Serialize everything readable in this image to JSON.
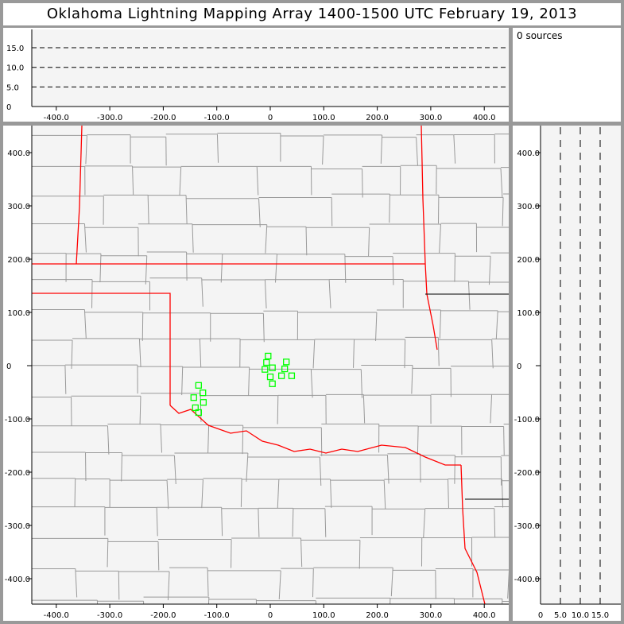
{
  "title": "Oklahoma Lightning Mapping Array   1400-1500 UTC  February 19, 2013",
  "sources_label": "0 sources",
  "colors": {
    "background": "#999999",
    "plot": "#f4f4f4",
    "county": "#999999",
    "state": "#ff0000",
    "station": "#00ff00"
  },
  "chart_data": [
    {
      "type": "line",
      "panel": "altitude-vs-east-west",
      "xlim": [
        -450,
        450
      ],
      "ylim": [
        0,
        19
      ],
      "x_ticks": [
        "-400.0",
        "-300.0",
        "-200.0",
        "-100.0",
        "0",
        "100.0",
        "200.0",
        "300.0",
        "400.0"
      ],
      "y_ticks": [
        "0",
        "5.0",
        "10.0",
        "15.0"
      ],
      "dashed_lines_at": [
        5,
        10,
        15
      ],
      "series": []
    },
    {
      "type": "scatter",
      "panel": "plan-view-map",
      "xlim": [
        -450,
        450
      ],
      "ylim": [
        -450,
        450
      ],
      "x_ticks": [
        "-400.0",
        "-300.0",
        "-200.0",
        "-100.0",
        "0",
        "100.0",
        "200.0",
        "300.0",
        "400.0"
      ],
      "y_ticks": [
        "400.0",
        "300.0",
        "200.0",
        "100.0",
        "0",
        "-100.0",
        "-200.0",
        "-300.0",
        "-400.0"
      ],
      "stations": [
        [
          -4,
          18
        ],
        [
          -7,
          6
        ],
        [
          4,
          -4
        ],
        [
          -10,
          -7
        ],
        [
          30,
          7
        ],
        [
          27,
          -6
        ],
        [
          0,
          -21
        ],
        [
          21,
          -19
        ],
        [
          40,
          -19
        ],
        [
          4,
          -34
        ],
        [
          -134,
          -37
        ],
        [
          -126,
          -51
        ],
        [
          -143,
          -60
        ],
        [
          -125,
          -69
        ],
        [
          -140,
          -79
        ],
        [
          -134,
          -88
        ]
      ]
    },
    {
      "type": "line",
      "panel": "north-south-vs-altitude",
      "xlim": [
        0,
        19
      ],
      "ylim": [
        -450,
        450
      ],
      "x_ticks": [
        "0",
        "5.0",
        "10.0",
        "15.0"
      ],
      "dashed_lines_at": [
        5,
        10,
        15
      ],
      "series": []
    }
  ]
}
